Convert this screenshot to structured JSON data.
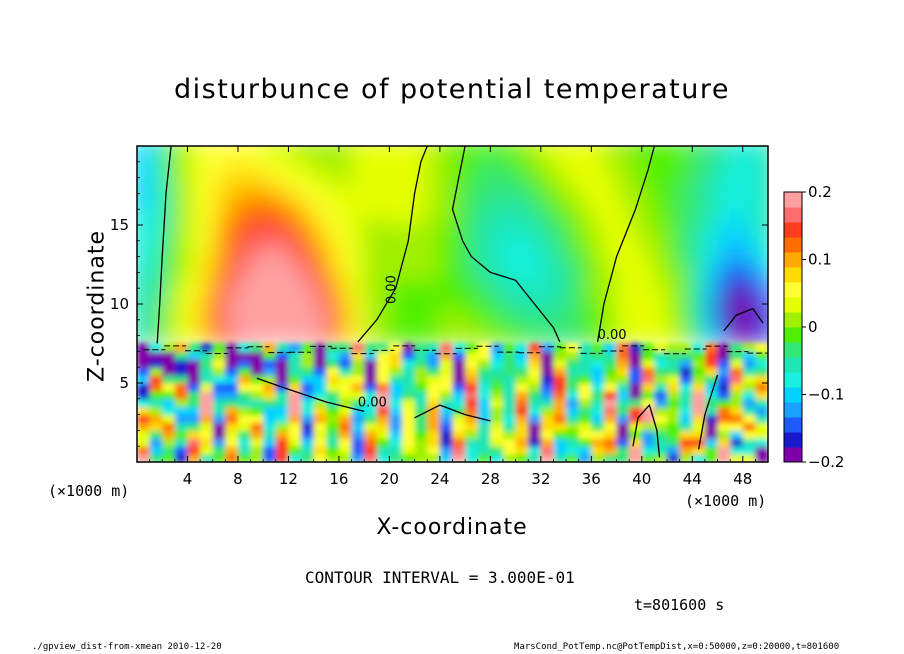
{
  "chart_data": {
    "type": "heatmap",
    "title": "disturbunce of potential temperature",
    "xlabel": "X-coordinate",
    "ylabel": "Z-coordinate",
    "x_unit": "(×1000 m)",
    "xlim": [
      0,
      50
    ],
    "ylim": [
      0,
      20
    ],
    "x_ticks": [
      4,
      8,
      12,
      16,
      20,
      24,
      28,
      32,
      36,
      40,
      44,
      48
    ],
    "y_ticks": [
      5,
      10,
      15
    ],
    "colorbar": {
      "range": [
        -0.2,
        0.2
      ],
      "ticks": [
        {
          "value": 0.2,
          "label": "0.2"
        },
        {
          "value": 0.1,
          "label": "0.1"
        },
        {
          "value": 0,
          "label": "0"
        },
        {
          "value": -0.1,
          "label": "−0.1"
        },
        {
          "value": -0.2,
          "label": "−0.2"
        }
      ],
      "colors": [
        "#7f00a8",
        "#1a1acd",
        "#1e5aff",
        "#1aa0ff",
        "#00d2ff",
        "#19f0e0",
        "#1ee6b4",
        "#32e678",
        "#50f000",
        "#a0f000",
        "#e6ff00",
        "#ffff32",
        "#ffdc00",
        "#ffaa00",
        "#ff6e00",
        "#ff3c1e",
        "#ff6e6e",
        "#ffa0a0"
      ]
    },
    "contour_label": "0.00",
    "contour_interval": "CONTOUR INTERVAL = 3.000E-01",
    "time": "t=801600  s"
  },
  "footer": {
    "left": "./gpview_dist-from-xmean  2010-12-20",
    "right": "MarsCond_PotTemp.nc@PotTempDist,x=0:50000,z=0:20000,t=801600"
  }
}
